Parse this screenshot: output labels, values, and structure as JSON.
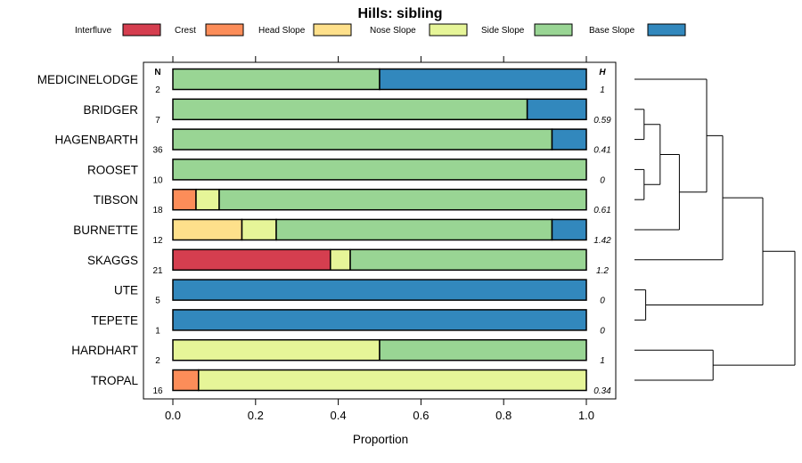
{
  "chart_data": {
    "type": "bar",
    "stacked": true,
    "orientation": "horizontal",
    "title": "Hills: sibling",
    "xlabel": "Proportion",
    "xlim": [
      0,
      1
    ],
    "xticks": [
      "0.0",
      "0.2",
      "0.4",
      "0.6",
      "0.8",
      "1.0"
    ],
    "n_header": "N",
    "h_header": "H",
    "series": [
      {
        "name": "Interfluve",
        "color": "#d53e4f"
      },
      {
        "name": "Crest",
        "color": "#fc8d59"
      },
      {
        "name": "Head Slope",
        "color": "#fee08b"
      },
      {
        "name": "Nose Slope",
        "color": "#e6f598"
      },
      {
        "name": "Side Slope",
        "color": "#99d594"
      },
      {
        "name": "Base Slope",
        "color": "#3288bd"
      }
    ],
    "rows": [
      {
        "label": "MEDICINELODGE",
        "n": "2",
        "h": "1",
        "values": [
          0,
          0,
          0,
          0,
          0.5,
          0.5
        ]
      },
      {
        "label": "BRIDGER",
        "n": "7",
        "h": "0.59",
        "values": [
          0,
          0,
          0,
          0,
          0.857,
          0.143
        ]
      },
      {
        "label": "HAGENBARTH",
        "n": "36",
        "h": "0.41",
        "values": [
          0,
          0,
          0,
          0,
          0.917,
          0.083
        ]
      },
      {
        "label": "ROOSET",
        "n": "10",
        "h": "0",
        "values": [
          0,
          0,
          0,
          0,
          1,
          0
        ]
      },
      {
        "label": "TIBSON",
        "n": "18",
        "h": "0.61",
        "values": [
          0,
          0.056,
          0,
          0.056,
          0.888,
          0
        ]
      },
      {
        "label": "BURNETTE",
        "n": "12",
        "h": "1.42",
        "values": [
          0,
          0,
          0.167,
          0.083,
          0.667,
          0.083
        ]
      },
      {
        "label": "SKAGGS",
        "n": "21",
        "h": "1.2",
        "values": [
          0.381,
          0,
          0,
          0.048,
          0.571,
          0
        ]
      },
      {
        "label": "UTE",
        "n": "5",
        "h": "0",
        "values": [
          0,
          0,
          0,
          0,
          0,
          1
        ]
      },
      {
        "label": "TEPETE",
        "n": "1",
        "h": "0",
        "values": [
          0,
          0,
          0,
          0,
          0,
          1
        ]
      },
      {
        "label": "HARDHART",
        "n": "2",
        "h": "1",
        "values": [
          0,
          0,
          0,
          0.5,
          0.5,
          0
        ]
      },
      {
        "label": "TROPAL",
        "n": "16",
        "h": "0.34",
        "values": [
          0,
          0.062,
          0,
          0.938,
          0,
          0
        ]
      }
    ],
    "dendrogram": {
      "leaves": [
        "MEDICINELODGE",
        "BRIDGER",
        "HAGENBARTH",
        "ROOSET",
        "TIBSON",
        "BURNETTE",
        "SKAGGS",
        "UTE",
        "TEPETE",
        "HARDHART",
        "TROPAL"
      ],
      "merges": [
        {
          "a": "L1",
          "b": "L2",
          "height": 0.06
        },
        {
          "a": "L3",
          "b": "L4",
          "height": 0.06
        },
        {
          "a": "M0",
          "b": "M1",
          "height": 0.16
        },
        {
          "a": "M2",
          "b": "L5",
          "height": 0.28
        },
        {
          "a": "M3",
          "b": "L0",
          "height": 0.45
        },
        {
          "a": "M4",
          "b": "L6",
          "height": 0.55
        },
        {
          "a": "L7",
          "b": "L8",
          "height": 0.07
        },
        {
          "a": "L9",
          "b": "L10",
          "height": 0.49
        },
        {
          "a": "M5",
          "b": "M6",
          "height": 0.8
        },
        {
          "a": "M8",
          "b": "M7",
          "height": 1.0
        }
      ]
    }
  }
}
